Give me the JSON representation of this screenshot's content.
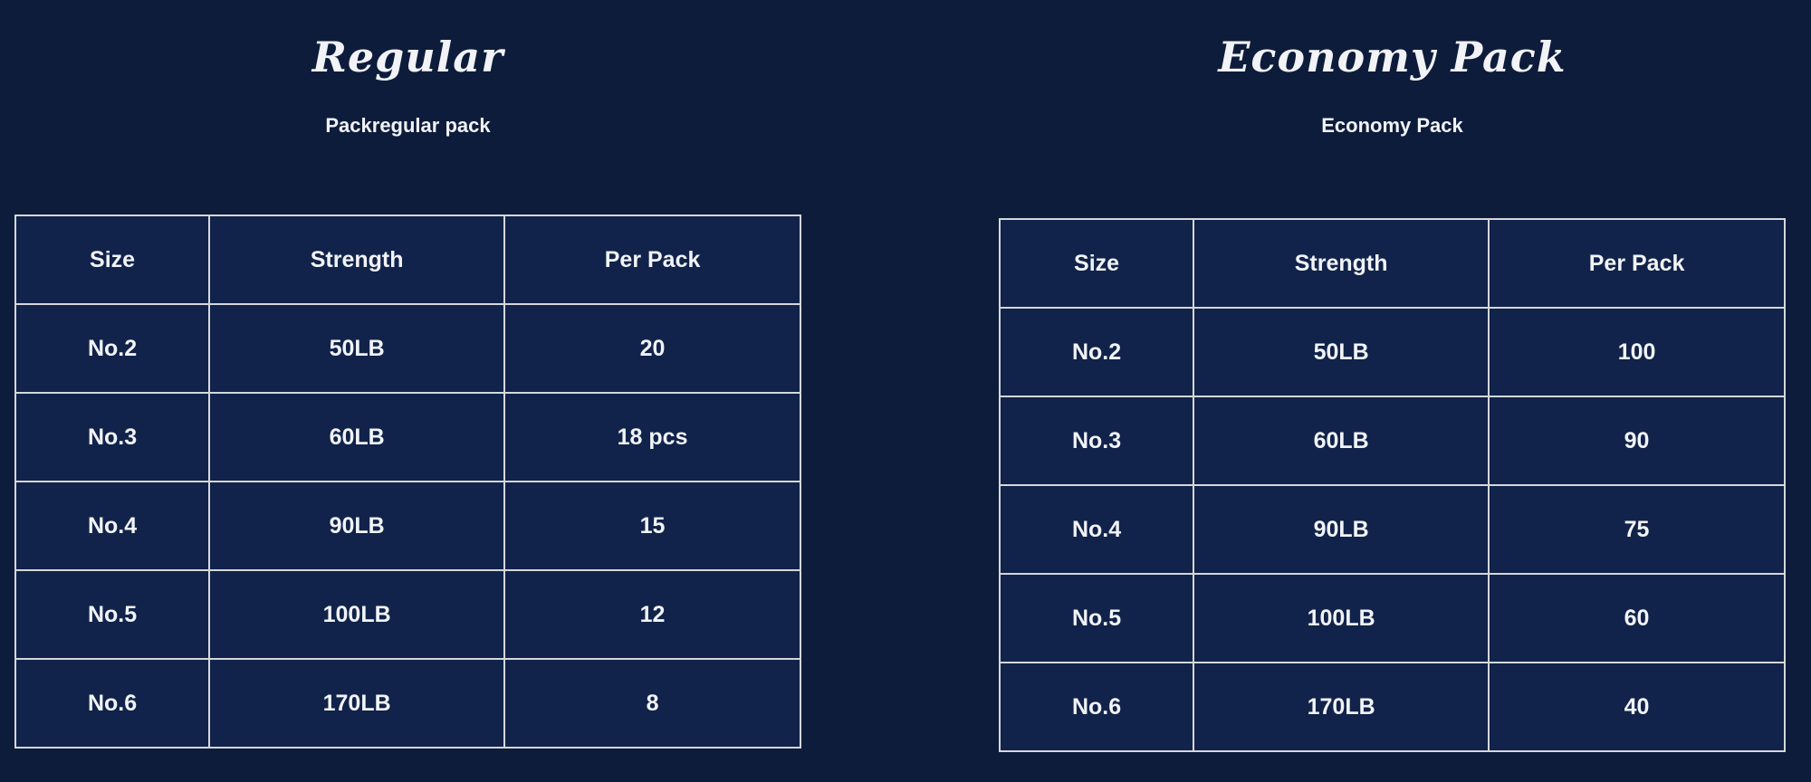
{
  "colors": {
    "background": "#0e1c3b",
    "cell": "#11234a",
    "border": "#d5d7da",
    "text": "#f1f3f7"
  },
  "sections": [
    {
      "title": "Regular",
      "subtitle": "Packregular pack",
      "table": {
        "headers": [
          "Size",
          "Strength",
          "Per Pack"
        ],
        "rows": [
          [
            "No.2",
            "50LB",
            "20"
          ],
          [
            "No.3",
            "60LB",
            "18 pcs"
          ],
          [
            "No.4",
            "90LB",
            "15"
          ],
          [
            "No.5",
            "100LB",
            "12"
          ],
          [
            "No.6",
            "170LB",
            "8"
          ]
        ]
      }
    },
    {
      "title": "Economy Pack",
      "subtitle": "Economy Pack",
      "table": {
        "headers": [
          "Size",
          "Strength",
          "Per Pack"
        ],
        "rows": [
          [
            "No.2",
            "50LB",
            "100"
          ],
          [
            "No.3",
            "60LB",
            "90"
          ],
          [
            "No.4",
            "90LB",
            "75"
          ],
          [
            "No.5",
            "100LB",
            "60"
          ],
          [
            "No.6",
            "170LB",
            "40"
          ]
        ]
      }
    }
  ]
}
